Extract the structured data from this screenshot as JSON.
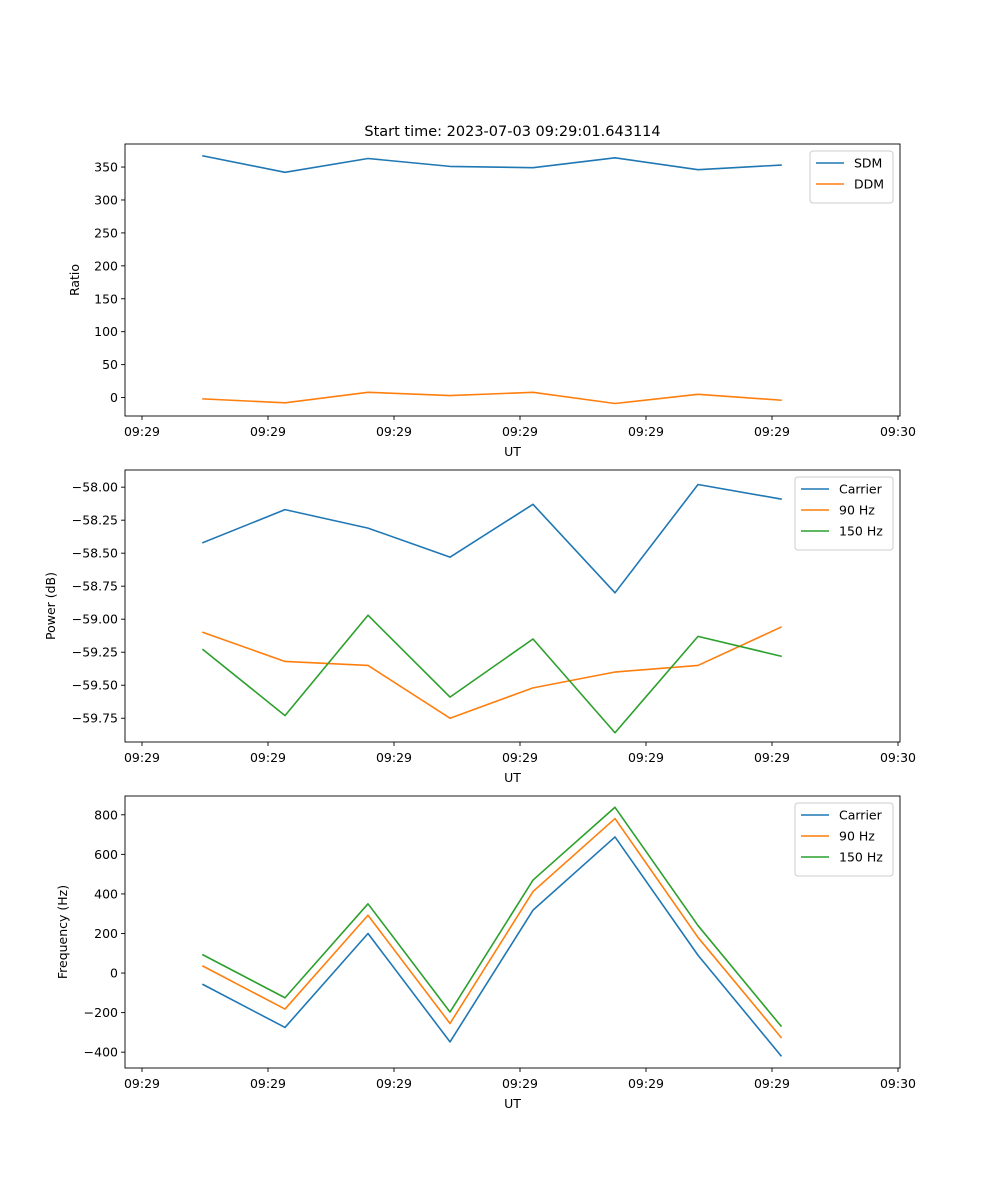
{
  "figure_title": "Start time: 2023-07-03 09:29:01.643114",
  "colors": {
    "blue": "#1f77b4",
    "orange": "#ff7f0e",
    "green": "#2ca02c",
    "axis": "#000000",
    "legend_border": "#cccccc"
  },
  "chart_data": [
    {
      "type": "line",
      "title": "Start time: 2023-07-03 09:29:01.643114",
      "xlabel": "UT",
      "ylabel": "Ratio",
      "x_ticks": [
        "09:29",
        "09:29",
        "09:29",
        "09:29",
        "09:29",
        "09:29",
        "09:30"
      ],
      "ylim": [
        -28,
        385
      ],
      "y_ticks": [
        0,
        50,
        100,
        150,
        200,
        250,
        300,
        350
      ],
      "y_tick_labels": [
        "0",
        "50",
        "100",
        "150",
        "200",
        "250",
        "300",
        "350"
      ],
      "grid": false,
      "legend_position": "top-right",
      "series": [
        {
          "name": "SDM",
          "color": "#1f77b4",
          "values": [
            367,
            342,
            363,
            351,
            349,
            364,
            346,
            353
          ]
        },
        {
          "name": "DDM",
          "color": "#ff7f0e",
          "values": [
            -2,
            -8,
            8,
            3,
            8,
            -9,
            5,
            -4
          ]
        }
      ]
    },
    {
      "type": "line",
      "title": "",
      "xlabel": "UT",
      "ylabel": "Power (dB)",
      "x_ticks": [
        "09:29",
        "09:29",
        "09:29",
        "09:29",
        "09:29",
        "09:29",
        "09:30"
      ],
      "ylim": [
        -59.93,
        -57.87
      ],
      "y_ticks": [
        -59.75,
        -59.5,
        -59.25,
        -59.0,
        -58.75,
        -58.5,
        -58.25,
        -58.0
      ],
      "y_tick_labels": [
        "−59.75",
        "−59.50",
        "−59.25",
        "−59.00",
        "−58.75",
        "−58.50",
        "−58.25",
        "−58.00"
      ],
      "grid": false,
      "legend_position": "top-right",
      "series": [
        {
          "name": "Carrier",
          "color": "#1f77b4",
          "values": [
            -58.42,
            -58.17,
            -58.31,
            -58.53,
            -58.13,
            -58.8,
            -57.98,
            -58.09
          ]
        },
        {
          "name": "90 Hz",
          "color": "#ff7f0e",
          "values": [
            -59.1,
            -59.32,
            -59.35,
            -59.75,
            -59.52,
            -59.4,
            -59.35,
            -59.06
          ]
        },
        {
          "name": "150 Hz",
          "color": "#2ca02c",
          "values": [
            -59.23,
            -59.73,
            -58.97,
            -59.59,
            -59.15,
            -59.86,
            -59.13,
            -59.28
          ]
        }
      ]
    },
    {
      "type": "line",
      "title": "",
      "xlabel": "UT",
      "ylabel": "Frequency (Hz)",
      "x_ticks": [
        "09:29",
        "09:29",
        "09:29",
        "09:29",
        "09:29",
        "09:29",
        "09:30"
      ],
      "ylim": [
        -480,
        895
      ],
      "y_ticks": [
        -400,
        -200,
        0,
        200,
        400,
        600,
        800
      ],
      "y_tick_labels": [
        "−400",
        "−200",
        "0",
        "200",
        "400",
        "600",
        "800"
      ],
      "grid": false,
      "legend_position": "top-right",
      "series": [
        {
          "name": "Carrier",
          "color": "#1f77b4",
          "values": [
            -58,
            -275,
            200,
            -348,
            318,
            688,
            90,
            -418
          ]
        },
        {
          "name": "90 Hz",
          "color": "#ff7f0e",
          "values": [
            35,
            -182,
            292,
            -255,
            412,
            781,
            180,
            -325
          ]
        },
        {
          "name": "150 Hz",
          "color": "#2ca02c",
          "values": [
            92,
            -125,
            350,
            -197,
            470,
            838,
            240,
            -268
          ]
        }
      ]
    }
  ]
}
